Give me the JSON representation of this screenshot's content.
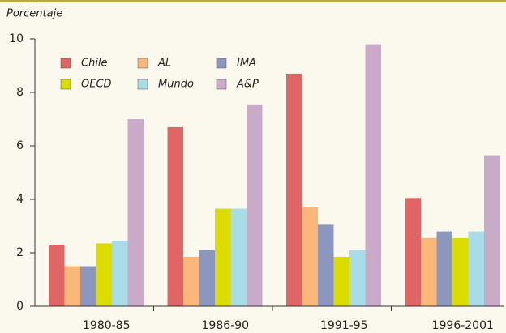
{
  "chart_data": {
    "type": "bar",
    "y_label": "Porcentaje",
    "categories": [
      "1980-85",
      "1986-90",
      "1991-95",
      "1996-2001"
    ],
    "series": [
      {
        "name": "Chile",
        "color": "#e06666",
        "values": [
          2.3,
          6.7,
          8.7,
          4.05
        ]
      },
      {
        "name": "AL",
        "color": "#f9b77a",
        "values": [
          1.5,
          1.85,
          3.7,
          2.55
        ]
      },
      {
        "name": "IMA",
        "color": "#8c97bf",
        "values": [
          1.5,
          2.1,
          3.05,
          2.8
        ]
      },
      {
        "name": "OECD",
        "color": "#dcdc00",
        "values": [
          2.35,
          3.65,
          1.85,
          2.55
        ]
      },
      {
        "name": "Mundo",
        "color": "#a8dde8",
        "values": [
          2.45,
          3.65,
          2.1,
          2.8
        ]
      },
      {
        "name": "A&P",
        "color": "#c9aac9",
        "values": [
          7.0,
          7.55,
          9.8,
          5.65
        ]
      }
    ],
    "ylim": [
      0,
      10
    ],
    "yticks": [
      0,
      2,
      4,
      6,
      8,
      10
    ]
  }
}
